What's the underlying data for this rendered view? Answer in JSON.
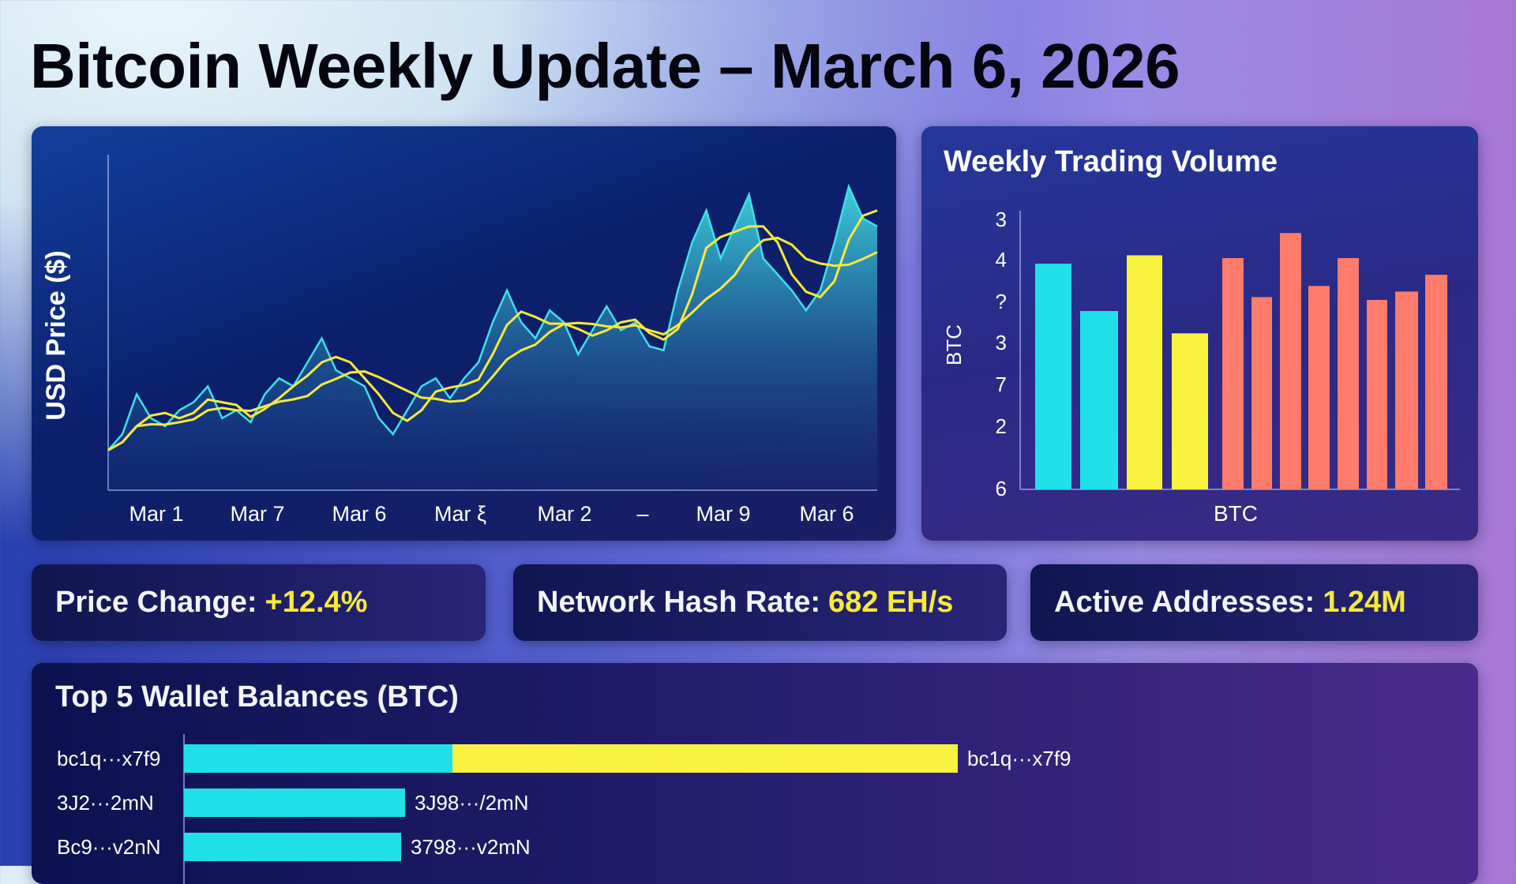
{
  "title": "Bitcoin Weekly Update – March 6, 2026",
  "chart_data": [
    {
      "type": "line",
      "title": "",
      "ylabel": "USD Price ($)",
      "xlabel": "",
      "x_tick_labels": [
        "Mar 1",
        "Mar 7",
        "Mar 6",
        "Mar ξ",
        "Mar 2",
        "–",
        "Mar 9",
        "Mar 6"
      ],
      "ylim": [
        20,
        100
      ],
      "grid": false,
      "series": [
        {
          "values": [
            30,
            34,
            44,
            38,
            36,
            40,
            42,
            46,
            38,
            40,
            37,
            44,
            48,
            46,
            52,
            58,
            50,
            48,
            46,
            38,
            34,
            40,
            46,
            48,
            43,
            48,
            52,
            62,
            70,
            62,
            58,
            65,
            62,
            54,
            60,
            66,
            60,
            62,
            56,
            55,
            70,
            82,
            90,
            78,
            86,
            94,
            78,
            74,
            70,
            65,
            70,
            82,
            96,
            88,
            86
          ]
        }
      ],
      "colors": {
        "price": "#3fe0e8",
        "ma_fast": "#f4ea3a",
        "ma_slow": "#f4ea3a"
      }
    },
    {
      "type": "bar",
      "title": "Weekly Trading Volume",
      "ylabel": "BTC",
      "xlabel": "BTC",
      "y_tick_labels": [
        "3",
        "4",
        "?",
        "3",
        "7",
        "2",
        "6"
      ],
      "values": [
        81,
        64,
        84,
        56,
        83,
        69,
        92,
        73,
        83,
        68,
        71,
        77
      ],
      "ylim": [
        0,
        100
      ],
      "colors": [
        "#20e0ea",
        "#20e0ea",
        "#f7f140",
        "#f7f140",
        "#ff7b6b",
        "#ff7b6b",
        "#ff7b6b",
        "#ff7b6b",
        "#ff7b6b",
        "#ff7b6b",
        "#ff7b6b",
        "#ff7b6b"
      ]
    },
    {
      "type": "bar",
      "orientation": "horizontal",
      "title": "Top 5 Wallet Balances (BTC)",
      "rows": [
        {
          "label": "bc1q···x7f9",
          "end_label": "bc1q···x7f9",
          "segments": [
            {
              "value": 34,
              "color": "#20e0ea"
            },
            {
              "value": 64,
              "color": "#f7f140"
            }
          ]
        },
        {
          "label": "3J2···2mN",
          "end_label": "3J98···/2mN",
          "segments": [
            {
              "value": 28,
              "color": "#20e0ea"
            }
          ]
        },
        {
          "label": "Bc9···v2nN",
          "end_label": "3798···v2mN",
          "segments": [
            {
              "value": 27.5,
              "color": "#20e0ea"
            }
          ]
        }
      ],
      "xlim": [
        0,
        100
      ]
    }
  ],
  "stats": [
    {
      "label": "Price Change:",
      "value": "+12.4%"
    },
    {
      "label": "Network Hash Rate:",
      "value": "682 EH/s"
    },
    {
      "label": "Active Addresses:",
      "value": "1.24M"
    }
  ]
}
